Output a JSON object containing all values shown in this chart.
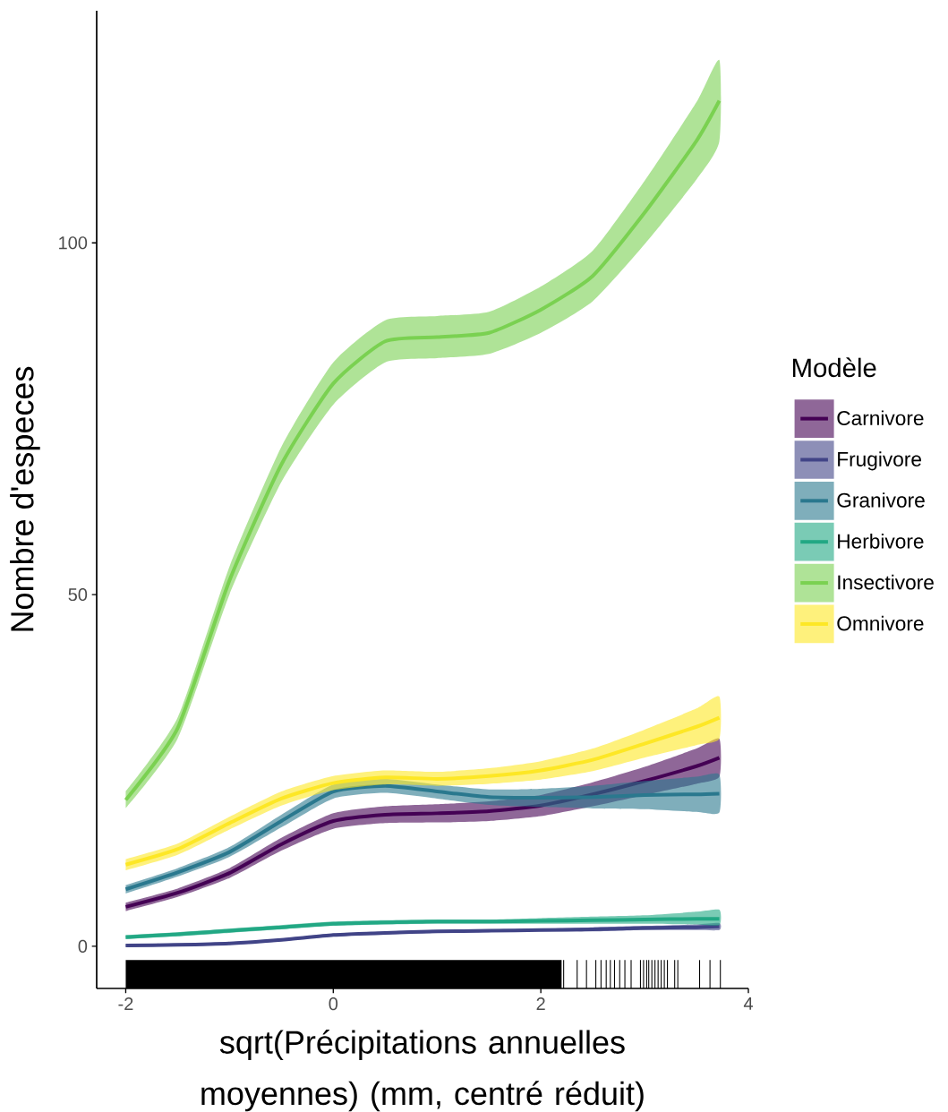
{
  "chart_data": {
    "type": "line",
    "xlabel": "sqrt(Précipitations annuelles moyennes) (mm, centré réduit)",
    "ylabel": "Nombre d'especes",
    "legend_title": "Modèle",
    "legend": "right",
    "grid": false,
    "xlim": [
      -2.28,
      4
    ],
    "ylim": [
      -6,
      133
    ],
    "xticks": [
      -2,
      0,
      2,
      4
    ],
    "yticks": [
      0,
      50,
      100
    ],
    "x": [
      -2,
      -1.5,
      -1,
      -0.5,
      0,
      0.5,
      1,
      1.5,
      2,
      2.5,
      3,
      3.5,
      3.72
    ],
    "series": [
      {
        "name": "Carnivore",
        "color": "#440154",
        "values": [
          5.6,
          7.6,
          10.4,
          14.5,
          17.8,
          18.7,
          18.9,
          19.2,
          20.0,
          21.6,
          23.5,
          25.6,
          26.8
        ],
        "lower": [
          5.0,
          7.0,
          9.7,
          13.6,
          16.7,
          17.5,
          17.6,
          17.8,
          18.5,
          19.9,
          21.5,
          23.1,
          24.1
        ],
        "upper": [
          6.2,
          8.2,
          11.1,
          15.4,
          18.9,
          19.9,
          20.2,
          20.6,
          21.5,
          23.3,
          25.5,
          28.1,
          29.5
        ]
      },
      {
        "name": "Frugivore",
        "color": "#414487",
        "values": [
          0.1,
          0.2,
          0.4,
          0.9,
          1.6,
          1.9,
          2.1,
          2.2,
          2.3,
          2.4,
          2.6,
          2.7,
          2.8
        ],
        "lower": [
          -0.1,
          0.0,
          0.2,
          0.7,
          1.4,
          1.7,
          1.9,
          2.0,
          2.1,
          2.1,
          2.3,
          2.3,
          2.3
        ],
        "upper": [
          0.3,
          0.4,
          0.6,
          1.1,
          1.8,
          2.1,
          2.3,
          2.4,
          2.5,
          2.7,
          2.9,
          3.1,
          3.3
        ]
      },
      {
        "name": "Granivore",
        "color": "#2a788e",
        "values": [
          8.1,
          10.5,
          13.4,
          17.8,
          22.0,
          22.8,
          22.0,
          21.2,
          21.1,
          21.2,
          21.5,
          21.6,
          21.7
        ],
        "lower": [
          7.5,
          9.9,
          12.7,
          16.9,
          21.0,
          21.8,
          21.0,
          20.1,
          19.8,
          19.6,
          19.5,
          19.1,
          19.0
        ],
        "upper": [
          8.7,
          11.1,
          14.1,
          18.7,
          23.0,
          23.8,
          23.0,
          22.3,
          22.4,
          22.8,
          23.5,
          24.1,
          24.4
        ]
      },
      {
        "name": "Herbivore",
        "color": "#22a884",
        "values": [
          1.3,
          1.7,
          2.2,
          2.7,
          3.2,
          3.4,
          3.5,
          3.5,
          3.6,
          3.7,
          3.8,
          3.9,
          3.9
        ],
        "lower": [
          1.0,
          1.4,
          1.9,
          2.4,
          2.9,
          3.1,
          3.2,
          3.2,
          3.2,
          3.2,
          3.2,
          3.1,
          3.0
        ],
        "upper": [
          1.6,
          2.0,
          2.5,
          3.0,
          3.5,
          3.7,
          3.8,
          3.8,
          4.0,
          4.2,
          4.4,
          4.9,
          5.2
        ]
      },
      {
        "name": "Insectivore",
        "color": "#7ad151",
        "values": [
          20.8,
          31,
          52,
          68.5,
          80,
          86.0,
          86.6,
          87.2,
          90.5,
          95.3,
          104.3,
          114.5,
          120.2
        ],
        "lower": [
          19.6,
          29.5,
          50,
          66,
          77,
          83,
          83.6,
          84.2,
          87.2,
          91.7,
          99.8,
          109,
          114.4
        ],
        "upper": [
          22,
          32.5,
          54,
          71,
          83,
          89,
          89.6,
          90.2,
          93.8,
          98.9,
          108.8,
          120,
          126
        ]
      },
      {
        "name": "Omnivore",
        "color": "#fde725",
        "values": [
          11.6,
          13.8,
          17.5,
          21.0,
          23.2,
          24.0,
          23.8,
          24.2,
          25.0,
          26.5,
          28.8,
          31.2,
          32.5
        ],
        "lower": [
          10.8,
          13.0,
          16.6,
          20.0,
          22.2,
          23.0,
          22.8,
          23.1,
          23.7,
          24.9,
          26.8,
          28.6,
          29.5
        ],
        "upper": [
          12.4,
          14.6,
          18.4,
          22.0,
          24.2,
          25.0,
          24.8,
          25.3,
          26.3,
          28.1,
          30.8,
          33.8,
          35.5
        ]
      }
    ]
  }
}
